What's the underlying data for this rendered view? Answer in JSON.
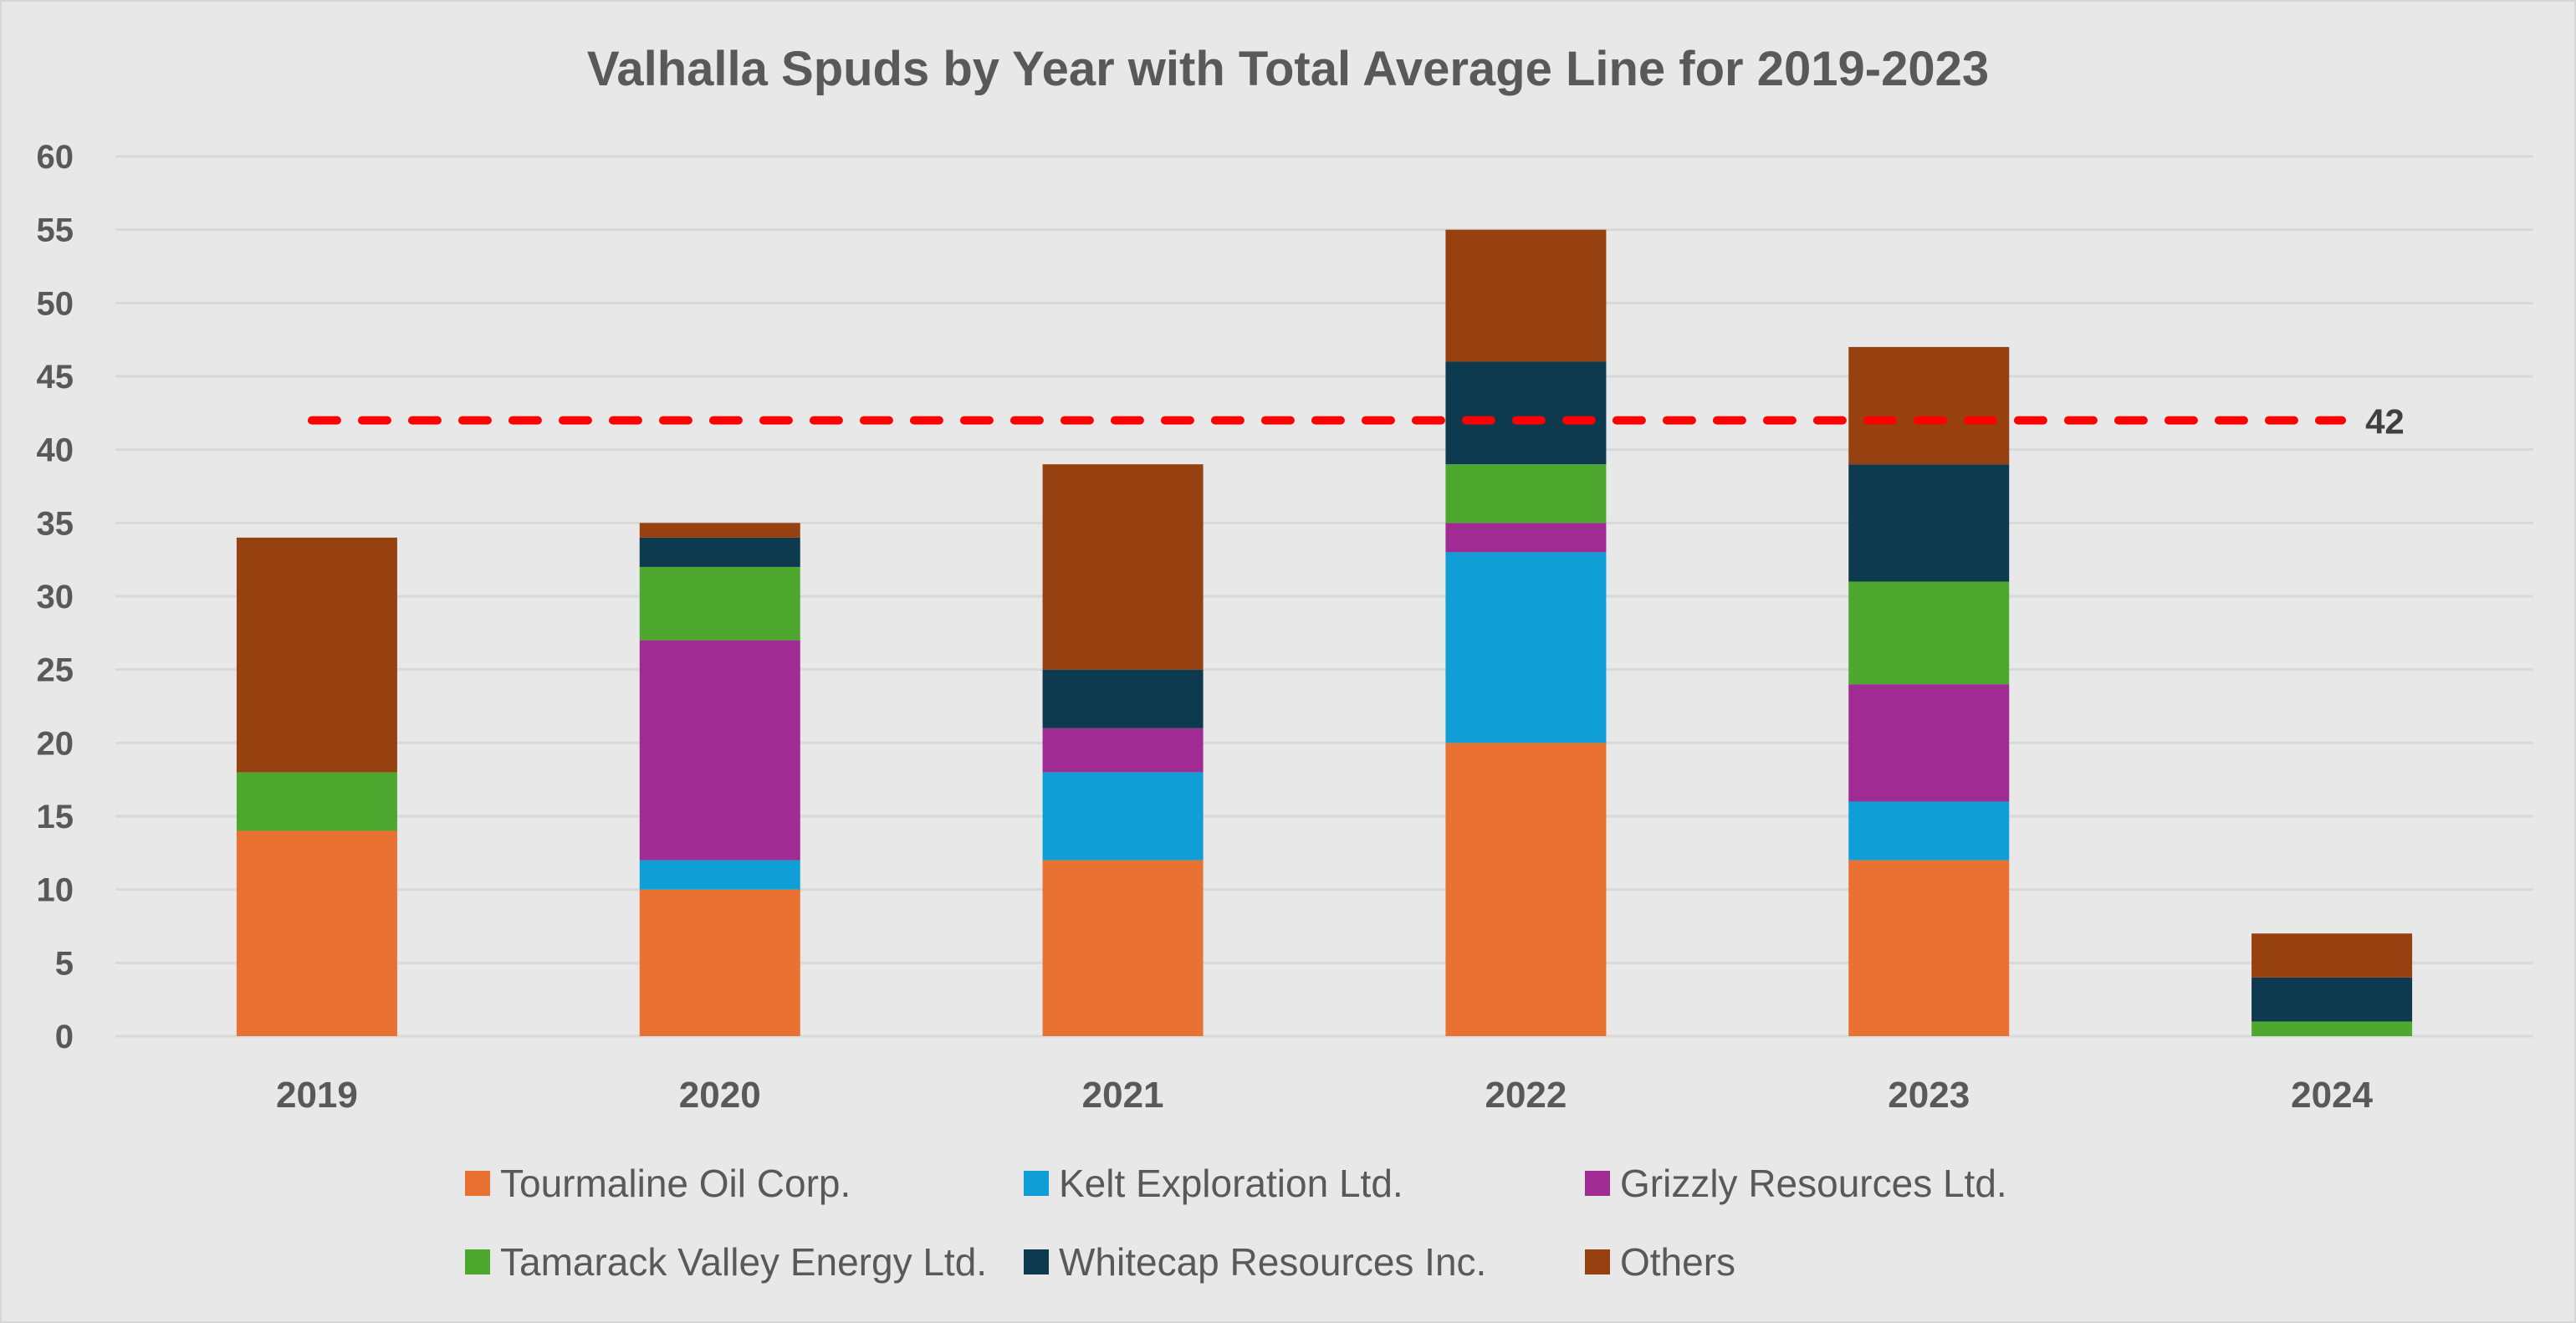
{
  "chart_data": {
    "type": "bar",
    "stacked": true,
    "title": "Valhalla Spuds by Year with Total Average Line for 2019-2023",
    "xlabel": "",
    "ylabel": "",
    "ylim": [
      0,
      60
    ],
    "yticks": [
      0,
      5,
      10,
      15,
      20,
      25,
      30,
      35,
      40,
      45,
      50,
      55,
      60
    ],
    "grid": true,
    "legend_position": "bottom",
    "categories": [
      "2019",
      "2020",
      "2021",
      "2022",
      "2023",
      "2024"
    ],
    "series": [
      {
        "name": "Tourmaline Oil Corp.",
        "color": "#e97132",
        "values": [
          14,
          10,
          12,
          20,
          12,
          0
        ]
      },
      {
        "name": "Kelt Exploration Ltd.",
        "color": "#0f9ed5",
        "values": [
          0,
          2,
          6,
          13,
          4,
          0
        ]
      },
      {
        "name": "Grizzly Resources Ltd.",
        "color": "#a02b93",
        "values": [
          0,
          15,
          3,
          2,
          8,
          0
        ]
      },
      {
        "name": "Tamarack Valley Energy Ltd.",
        "color": "#4ea72e",
        "values": [
          4,
          5,
          0,
          4,
          7,
          1
        ]
      },
      {
        "name": "Whitecap Resources Inc.",
        "color": "#0e3a50",
        "values": [
          0,
          2,
          4,
          7,
          8,
          3
        ]
      },
      {
        "name": "Others",
        "color": "#974010",
        "values": [
          16,
          1,
          14,
          9,
          8,
          3
        ]
      }
    ],
    "totals": [
      34,
      35,
      39,
      55,
      47,
      7
    ],
    "average_line": {
      "value": 42,
      "label": "42",
      "color": "#ff0000",
      "style": "dashed",
      "span_categories": [
        "2019",
        "2024"
      ]
    }
  }
}
